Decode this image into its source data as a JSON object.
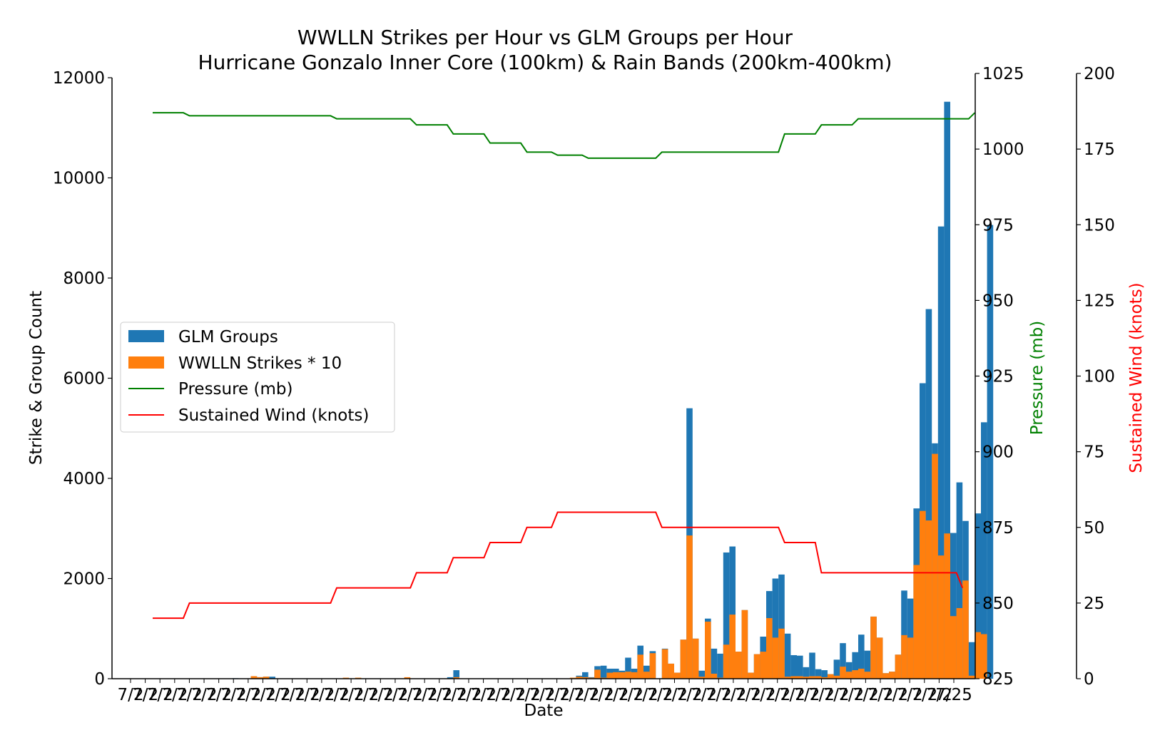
{
  "chart_data": {
    "type": "bar",
    "title": "WWLLN Strikes per Hour vs GLM Groups per Hour",
    "subtitle": "Hurricane Gonzalo Inner Core (100km) & Rain Bands (200km-400km)",
    "xlabel": "Date",
    "ylabel": "Strike & Group Count",
    "ylim": [
      0,
      12000
    ],
    "yticks": [
      "0",
      "2000",
      "4000",
      "6000",
      "8000",
      "10000",
      "12000"
    ],
    "xtick_labels": [
      "7/2",
      "7/2",
      "7/2",
      "7/2",
      "7/2",
      "7/2",
      "7/2",
      "7/2",
      "7/2",
      "7/2",
      "7/2",
      "7/2",
      "7/2",
      "7/2",
      "7/2",
      "7/2",
      "7/2",
      "7/2",
      "7/2",
      "7/2",
      "7/2",
      "7/2",
      "7/2",
      "7/2",
      "7/2",
      "7/2",
      "7/2",
      "7/2",
      "7/2",
      "7/2",
      "7/2",
      "7/2",
      "7/2",
      "7/2",
      "7/2",
      "7/2",
      "7/2",
      "7/2",
      "7/2",
      "7/2",
      "7/2",
      "7/2",
      "7/2",
      "7/2",
      "7/2",
      "7/2",
      "7/2",
      "7/2",
      "7/2",
      "7/2",
      "7/2",
      "7/2",
      "7/2",
      "7/2",
      "7/2",
      "7/2",
      "7/25"
    ],
    "y2label": "Pressure (mb)",
    "y2lim": [
      825,
      1025
    ],
    "y2ticks": [
      "825",
      "850",
      "875",
      "900",
      "925",
      "950",
      "975",
      "1000",
      "1025"
    ],
    "y3label": "Sustained Wind (knots)",
    "y3lim": [
      0,
      200
    ],
    "y3ticks": [
      "0",
      "25",
      "50",
      "75",
      "100",
      "125",
      "150",
      "175",
      "200"
    ],
    "legend_position": "center-left",
    "colors": {
      "glm": "#1f77b4",
      "wwlln": "#ff7f0e",
      "pressure": "#008000",
      "wind": "#ff0000"
    },
    "bar_series": [
      {
        "name": "GLM Groups",
        "values": [
          0,
          0,
          0,
          0,
          0,
          0,
          0,
          0,
          0,
          0,
          0,
          0,
          0,
          10,
          0,
          0,
          50,
          30,
          40,
          40,
          0,
          0,
          0,
          0,
          0,
          0,
          0,
          0,
          0,
          0,
          0,
          0,
          0,
          0,
          0,
          0,
          0,
          0,
          0,
          0,
          0,
          0,
          0,
          0,
          0,
          0,
          0,
          0,
          30,
          170,
          0,
          0,
          0,
          0,
          0,
          0,
          0,
          0,
          0,
          0,
          0,
          0,
          0,
          0,
          0,
          0,
          0,
          0,
          0,
          60,
          130,
          30,
          250,
          260,
          200,
          200,
          160,
          420,
          200,
          660,
          260,
          550,
          0,
          600,
          300,
          120,
          780,
          5400,
          800,
          160,
          1200,
          600,
          500,
          2520,
          2640,
          540,
          1370,
          120,
          490,
          840,
          1750,
          2000,
          2080,
          900,
          470,
          460,
          230,
          520,
          190,
          170,
          90,
          380,
          710,
          330,
          530,
          880,
          560,
          1240,
          820,
          110,
          140,
          480,
          1760,
          1600,
          3400,
          5900,
          7380,
          4700,
          9030,
          11520,
          2910,
          3920,
          3150,
          730,
          3300,
          5120,
          9060
        ]
      },
      {
        "name": "WWLLN Strikes * 10",
        "values": [
          0,
          0,
          0,
          0,
          0,
          0,
          0,
          0,
          0,
          0,
          0,
          0,
          0,
          0,
          0,
          0,
          50,
          30,
          40,
          0,
          0,
          0,
          0,
          0,
          0,
          0,
          0,
          0,
          0,
          0,
          0,
          20,
          0,
          20,
          0,
          0,
          0,
          0,
          0,
          0,
          0,
          30,
          0,
          0,
          0,
          0,
          0,
          0,
          0,
          30,
          0,
          0,
          0,
          0,
          0,
          0,
          0,
          0,
          0,
          0,
          0,
          0,
          0,
          0,
          0,
          0,
          0,
          0,
          20,
          40,
          30,
          20,
          180,
          20,
          120,
          130,
          130,
          140,
          130,
          480,
          140,
          510,
          0,
          590,
          300,
          120,
          780,
          2860,
          800,
          40,
          1140,
          100,
          20,
          680,
          1280,
          540,
          1370,
          120,
          490,
          540,
          1210,
          820,
          1000,
          40,
          50,
          50,
          40,
          50,
          50,
          30,
          90,
          60,
          240,
          140,
          170,
          200,
          140,
          1240,
          820,
          110,
          140,
          480,
          870,
          820,
          2270,
          3350,
          3160,
          4490,
          2460,
          2900,
          1250,
          1410,
          1960,
          60,
          930,
          890,
          0
        ]
      }
    ],
    "line_series": [
      {
        "name": "Pressure (mb)",
        "axis": "pressure",
        "values": [
          1012,
          1012,
          1012,
          1012,
          1012,
          1012,
          1011,
          1011,
          1011,
          1011,
          1011,
          1011,
          1011,
          1011,
          1011,
          1011,
          1011,
          1011,
          1011,
          1011,
          1011,
          1011,
          1011,
          1011,
          1011,
          1011,
          1011,
          1011,
          1011,
          1011,
          1010,
          1010,
          1010,
          1010,
          1010,
          1010,
          1010,
          1010,
          1010,
          1010,
          1010,
          1010,
          1010,
          1008,
          1008,
          1008,
          1008,
          1008,
          1008,
          1005,
          1005,
          1005,
          1005,
          1005,
          1005,
          1002,
          1002,
          1002,
          1002,
          1002,
          1002,
          999,
          999,
          999,
          999,
          999,
          998,
          998,
          998,
          998,
          998,
          997,
          997,
          997,
          997,
          997,
          997,
          997,
          997,
          997,
          997,
          997,
          997,
          999,
          999,
          999,
          999,
          999,
          999,
          999,
          999,
          999,
          999,
          999,
          999,
          999,
          999,
          999,
          999,
          999,
          999,
          999,
          999,
          1005,
          1005,
          1005,
          1005,
          1005,
          1005,
          1008,
          1008,
          1008,
          1008,
          1008,
          1008,
          1010,
          1010,
          1010,
          1010,
          1010,
          1010,
          1010,
          1010,
          1010,
          1010,
          1010,
          1010,
          1010,
          1010,
          1010,
          1010,
          1010,
          1010,
          1010,
          1012
        ]
      },
      {
        "name": "Sustained Wind (knots)",
        "axis": "wind",
        "values": [
          20,
          20,
          20,
          20,
          20,
          20,
          25,
          25,
          25,
          25,
          25,
          25,
          25,
          25,
          25,
          25,
          25,
          25,
          25,
          25,
          25,
          25,
          25,
          25,
          25,
          25,
          25,
          25,
          25,
          25,
          30,
          30,
          30,
          30,
          30,
          30,
          30,
          30,
          30,
          30,
          30,
          30,
          30,
          35,
          35,
          35,
          35,
          35,
          35,
          40,
          40,
          40,
          40,
          40,
          40,
          45,
          45,
          45,
          45,
          45,
          45,
          50,
          50,
          50,
          50,
          50,
          55,
          55,
          55,
          55,
          55,
          55,
          55,
          55,
          55,
          55,
          55,
          55,
          55,
          55,
          55,
          55,
          55,
          50,
          50,
          50,
          50,
          50,
          50,
          50,
          50,
          50,
          50,
          50,
          50,
          50,
          50,
          50,
          50,
          50,
          50,
          50,
          50,
          45,
          45,
          45,
          45,
          45,
          45,
          35,
          35,
          35,
          35,
          35,
          35,
          35,
          35,
          35,
          35,
          35,
          35,
          35,
          35,
          35,
          35,
          35,
          35,
          35,
          35,
          35,
          35,
          35,
          30
        ]
      }
    ]
  }
}
